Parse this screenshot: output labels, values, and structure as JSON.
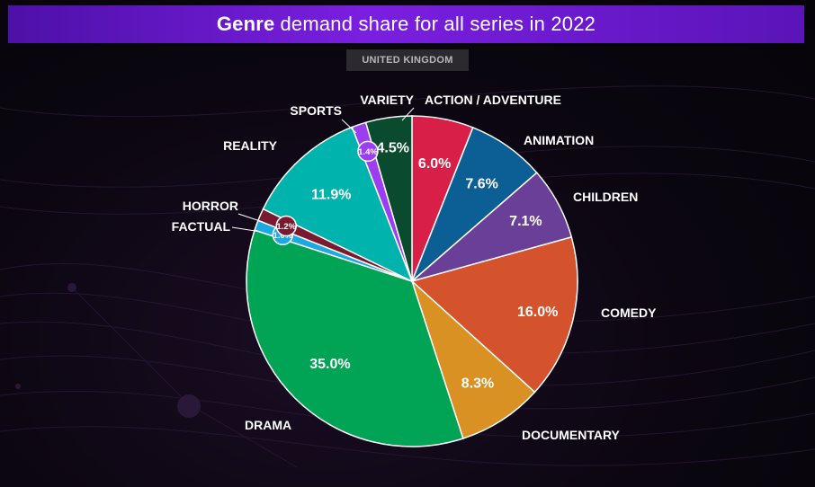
{
  "header": {
    "title_strong": "Genre",
    "title_rest": "demand share for all series in 2022"
  },
  "region": "UNITED KINGDOM",
  "chart_data": {
    "type": "pie",
    "title": "Genre demand share for all series in 2022",
    "subtitle": "UNITED KINGDOM",
    "unit": "%",
    "slices": [
      {
        "label": "ACTION / ADVENTURE",
        "value": 6.0,
        "display": "6.0%",
        "color": "#d81f48"
      },
      {
        "label": "ANIMATION",
        "value": 7.6,
        "display": "7.6%",
        "color": "#0b5f94"
      },
      {
        "label": "CHILDREN",
        "value": 7.1,
        "display": "7.1%",
        "color": "#6a3f98"
      },
      {
        "label": "COMEDY",
        "value": 16.0,
        "display": "16.0%",
        "color": "#d4522c"
      },
      {
        "label": "DOCUMENTARY",
        "value": 8.3,
        "display": "8.3%",
        "color": "#d99124"
      },
      {
        "label": "DRAMA",
        "value": 35.0,
        "display": "35.0%",
        "color": "#00a454"
      },
      {
        "label": "FACTUAL",
        "value": 1.0,
        "display": "1.0%",
        "color": "#1aa9e0"
      },
      {
        "label": "HORROR",
        "value": 1.2,
        "display": "1.2%",
        "color": "#7a1a30"
      },
      {
        "label": "REALITY",
        "value": 11.9,
        "display": "11.9%",
        "color": "#00b3ad"
      },
      {
        "label": "SPORTS",
        "value": 1.4,
        "display": "1.4%",
        "color": "#9b3ef0"
      },
      {
        "label": "VARIETY",
        "value": 4.5,
        "display": "4.5%",
        "color": "#0a4a2e"
      }
    ]
  }
}
